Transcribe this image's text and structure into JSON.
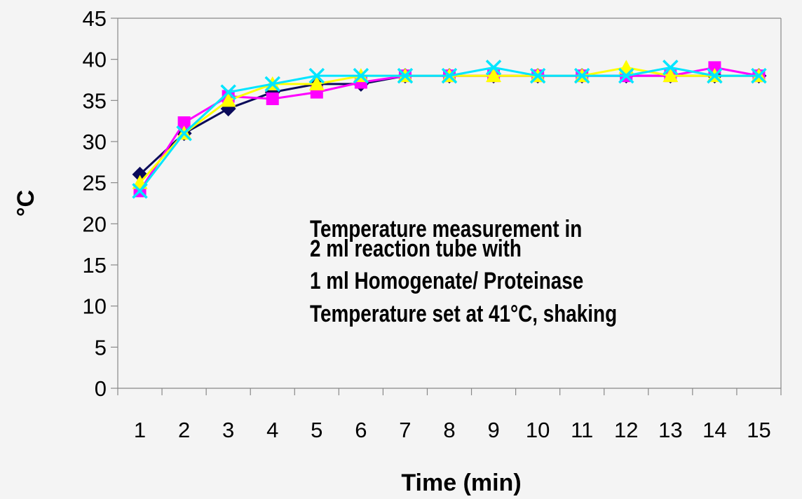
{
  "chart_data": {
    "type": "line",
    "title": "",
    "xlabel": "Time (min)",
    "ylabel": "°C",
    "categories": [
      "1",
      "2",
      "3",
      "4",
      "5",
      "6",
      "7",
      "8",
      "9",
      "10",
      "11",
      "12",
      "13",
      "14",
      "15"
    ],
    "ylim": [
      0,
      45
    ],
    "yticks": [
      0,
      5,
      10,
      15,
      20,
      25,
      30,
      35,
      40,
      45
    ],
    "grid": false,
    "legend": "none",
    "annotation": [
      "Temperature measurement in",
      "2 ml reaction tube with",
      "1 ml Homogenate/ Proteinase",
      "Temperature set at 41°C, shaking"
    ],
    "series": [
      {
        "color": "#0a0a5a",
        "marker": "diamond",
        "values": [
          26,
          31,
          34,
          36,
          37,
          37,
          38,
          38,
          38,
          38,
          38,
          38,
          38,
          38,
          38
        ]
      },
      {
        "color": "#ff00ff",
        "marker": "square",
        "values": [
          24,
          32.3,
          35.5,
          35.2,
          36,
          37.2,
          38,
          38,
          38,
          38,
          38,
          38,
          38,
          39,
          38
        ]
      },
      {
        "color": "#ffff00",
        "marker": "triangle",
        "values": [
          25,
          31,
          35,
          37,
          37,
          38,
          38,
          38,
          38,
          38,
          38,
          39,
          38,
          38,
          38
        ]
      },
      {
        "color": "#00e5ff",
        "marker": "x",
        "values": [
          24,
          31,
          36,
          37,
          38,
          38,
          38,
          38,
          39,
          38,
          38,
          38,
          39,
          38,
          38
        ]
      }
    ]
  }
}
